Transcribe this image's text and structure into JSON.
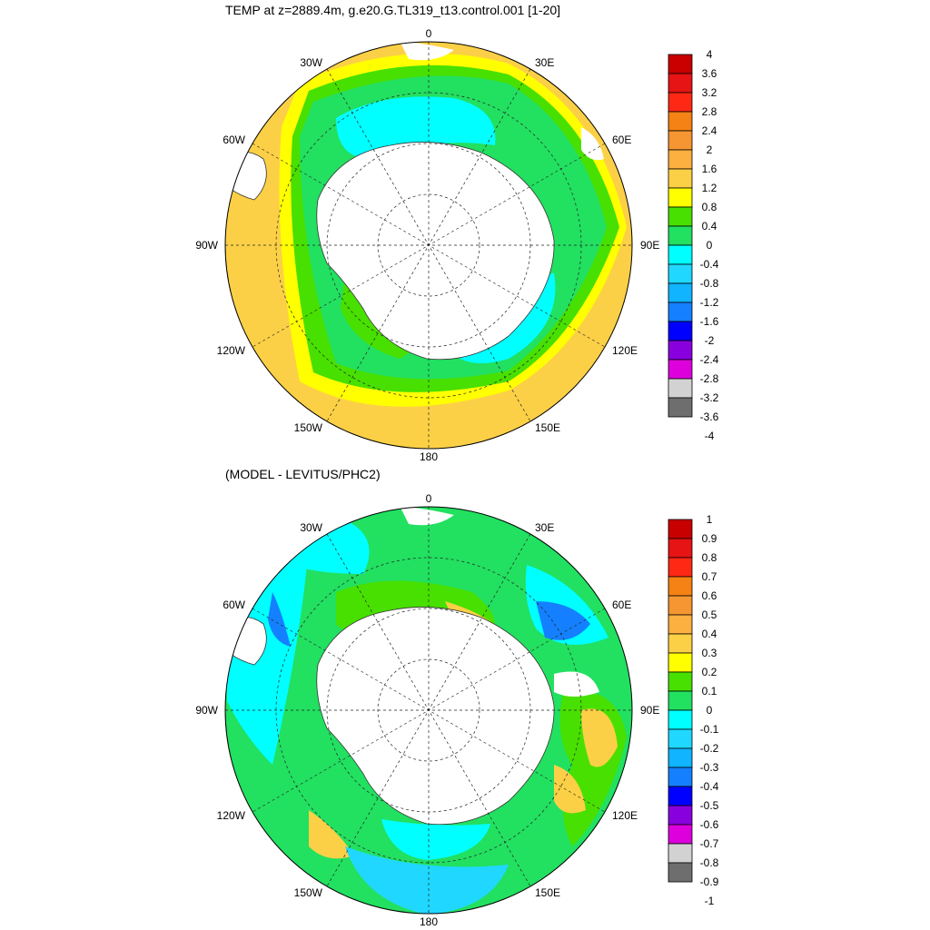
{
  "top_panel": {
    "title": "TEMP at z=2889.4m, g.e20.G.TL319_t13.control.001 [1-20]",
    "lon_labels": [
      "0",
      "30E",
      "60E",
      "90E",
      "120E",
      "150E",
      "180",
      "150W",
      "120W",
      "90W",
      "60W",
      "30W"
    ],
    "colorbar": {
      "labels": [
        "4",
        "3.6",
        "3.2",
        "2.8",
        "2.4",
        "2",
        "1.6",
        "1.2",
        "0.8",
        "0.4",
        "0",
        "-0.4",
        "-0.8",
        "-1.2",
        "-1.6",
        "-2",
        "-2.4",
        "-2.8",
        "-3.2",
        "-3.6",
        "-4"
      ],
      "colors": [
        "#c80000",
        "#e61414",
        "#ff2814",
        "#f58214",
        "#f59632",
        "#fcb040",
        "#fcd046",
        "#ffff00",
        "#48e000",
        "#22e060",
        "#00ffff",
        "#20d8ff",
        "#10b4ff",
        "#1480ff",
        "#0000ff",
        "#8800dd",
        "#dd00dd",
        "#d2d2d2",
        "#6e6e6e"
      ]
    }
  },
  "bottom_panel": {
    "title": "(MODEL - LEVITUS/PHC2)",
    "lon_labels": [
      "0",
      "30E",
      "60E",
      "90E",
      "120E",
      "150E",
      "180",
      "150W",
      "120W",
      "90W",
      "60W",
      "30W"
    ],
    "colorbar": {
      "labels": [
        "1",
        "0.9",
        "0.8",
        "0.7",
        "0.6",
        "0.5",
        "0.4",
        "0.3",
        "0.2",
        "0.1",
        "0",
        "-0.1",
        "-0.2",
        "-0.3",
        "-0.4",
        "-0.5",
        "-0.6",
        "-0.7",
        "-0.8",
        "-0.9",
        "-1"
      ],
      "colors": [
        "#c80000",
        "#e61414",
        "#ff2814",
        "#f58214",
        "#f59632",
        "#fcb040",
        "#fcd046",
        "#ffff00",
        "#48e000",
        "#22e060",
        "#00ffff",
        "#20d8ff",
        "#10b4ff",
        "#1480ff",
        "#0000ff",
        "#8800dd",
        "#dd00dd",
        "#d2d2d2",
        "#6e6e6e"
      ]
    }
  }
}
